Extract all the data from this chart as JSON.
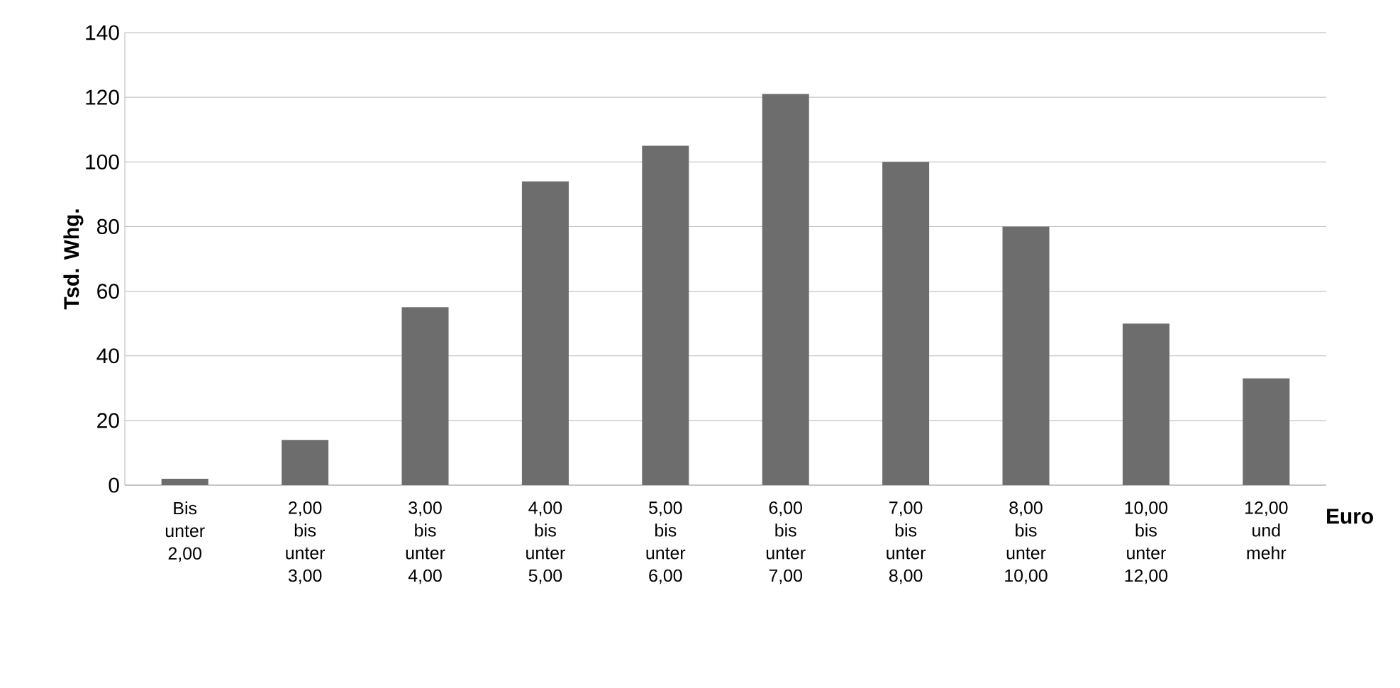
{
  "chart_data": {
    "type": "bar",
    "ylabel": "Tsd. Whg.",
    "xlabel": "Euro",
    "categories": [
      "Bis unter 2,00",
      "2,00 bis unter 3,00",
      "3,00 bis unter 4,00",
      "4,00 bis unter 5,00",
      "5,00 bis unter 6,00",
      "6,00 bis unter 7,00",
      "7,00 bis unter 8,00",
      "8,00 bis unter 10,00",
      "10,00 bis unter 12,00",
      "12,00 und mehr"
    ],
    "values": [
      2,
      14,
      55,
      94,
      105,
      121,
      100,
      80,
      50,
      33
    ],
    "color": "#6d6d6d",
    "ylim": [
      0,
      140
    ],
    "yticks": [
      0,
      20,
      40,
      60,
      80,
      100,
      120,
      140
    ],
    "grid": "y"
  }
}
